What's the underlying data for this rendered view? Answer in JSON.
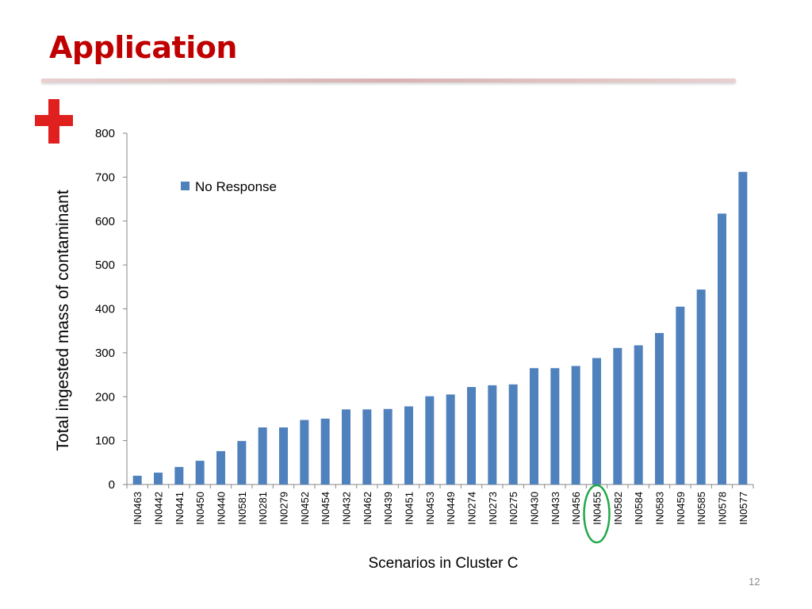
{
  "slide": {
    "title": "Application",
    "page_number": "12"
  },
  "icons": {
    "cross": "red-cross-icon"
  },
  "colors": {
    "title": "#c00000",
    "bar": "#4f81bd",
    "cross": "#e0201f",
    "highlight": "#22a84a"
  },
  "chart_data": {
    "type": "bar",
    "xlabel": "Scenarios in Cluster C",
    "ylabel": "Total ingested mass of contaminant",
    "ylim": [
      0,
      800
    ],
    "yticks": [
      0,
      100,
      200,
      300,
      400,
      500,
      600,
      700,
      800
    ],
    "categories": [
      "IN0463",
      "IN0442",
      "IN0441",
      "IN0450",
      "IN0440",
      "IN0581",
      "IN0281",
      "IN0279",
      "IN0452",
      "IN0454",
      "IN0432",
      "IN0462",
      "IN0439",
      "IN0451",
      "IN0453",
      "IN0449",
      "IN0274",
      "IN0273",
      "IN0275",
      "IN0430",
      "IN0433",
      "IN0456",
      "IN0455",
      "IN0582",
      "IN0584",
      "IN0583",
      "IN0459",
      "IN0585",
      "IN0578",
      "IN0577"
    ],
    "series": [
      {
        "name": "No Response",
        "values": [
          20,
          27,
          40,
          54,
          76,
          99,
          130,
          130,
          147,
          150,
          171,
          171,
          172,
          178,
          201,
          205,
          222,
          226,
          228,
          265,
          265,
          270,
          288,
          311,
          317,
          345,
          405,
          444,
          617,
          712
        ]
      }
    ],
    "legend": "top-left",
    "grid": false,
    "highlighted_category": "IN0455"
  }
}
